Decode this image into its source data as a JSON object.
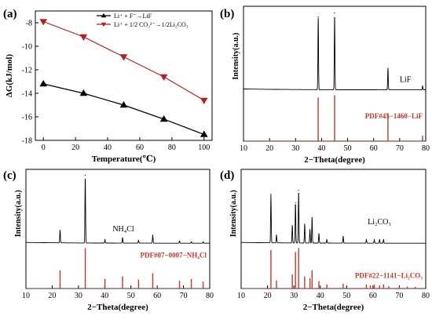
{
  "chart_data": [
    {
      "id": "a",
      "panel_label": "(a)",
      "type": "line",
      "xlabel": "Temperature(℃)",
      "ylabel": "ΔG(kJ/mol)",
      "xlim": [
        -5,
        105
      ],
      "ylim": [
        -18,
        -7
      ],
      "xticks": [
        0,
        20,
        40,
        60,
        80,
        100
      ],
      "yticks": [
        -8,
        -10,
        -12,
        -14,
        -16,
        -18
      ],
      "legend_position": "top-center",
      "series": [
        {
          "name": "Li⁺ + F⁻→LiF",
          "color": "#000000",
          "marker": "triangle-up",
          "x": [
            0,
            25,
            50,
            75,
            100
          ],
          "y": [
            -13.2,
            -14.0,
            -15.0,
            -16.2,
            -17.5
          ]
        },
        {
          "name": "Li⁺ + 1/2 CO₃²⁻→1/2Li₂CO₃",
          "color": "#b22222",
          "marker": "triangle-down",
          "x": [
            0,
            25,
            50,
            75,
            100
          ],
          "y": [
            -7.9,
            -9.2,
            -10.9,
            -12.6,
            -14.6
          ]
        }
      ]
    },
    {
      "id": "b",
      "panel_label": "(b)",
      "type": "xrd",
      "xlabel": "2−Theta(degree)",
      "ylabel": "Intensity(a.u.)",
      "xlim": [
        10,
        80
      ],
      "xticks": [
        10,
        20,
        30,
        40,
        50,
        60,
        70,
        80
      ],
      "sample_label": "LiF",
      "reference_label": "PDF#45−1460−LiF",
      "peaks": [
        [
          38.7,
          0.95
        ],
        [
          45.0,
          1.0
        ],
        [
          65.5,
          0.28
        ],
        [
          78.8,
          0.05
        ]
      ],
      "reference_lines": [
        [
          38.7,
          0.95
        ],
        [
          45.0,
          1.0
        ],
        [
          65.5,
          0.6
        ],
        [
          78.8,
          0.12
        ]
      ]
    },
    {
      "id": "c",
      "panel_label": "(c)",
      "type": "xrd",
      "xlabel": "2−Theta(degree)",
      "ylabel": "Intensity(a.u.)",
      "xlim": [
        10,
        80
      ],
      "xticks": [
        10,
        20,
        30,
        40,
        50,
        60,
        70,
        80
      ],
      "sample_label": "NH₄Cl",
      "reference_label": "PDF#07−0007−NH₄Cl",
      "peaks": [
        [
          23.0,
          0.19
        ],
        [
          32.6,
          1.0
        ],
        [
          40.1,
          0.05
        ],
        [
          46.8,
          0.08
        ],
        [
          52.9,
          0.04
        ],
        [
          58.3,
          0.12
        ],
        [
          68.5,
          0.03
        ],
        [
          73.0,
          0.02
        ],
        [
          77.5,
          0.02
        ]
      ],
      "reference_lines": [
        [
          23.0,
          0.45
        ],
        [
          32.6,
          1.0
        ],
        [
          40.1,
          0.24
        ],
        [
          46.8,
          0.3
        ],
        [
          52.9,
          0.22
        ],
        [
          58.3,
          0.38
        ],
        [
          68.5,
          0.19
        ],
        [
          73.0,
          0.24
        ],
        [
          77.5,
          0.17
        ]
      ]
    },
    {
      "id": "d",
      "panel_label": "(d)",
      "type": "xrd",
      "xlabel": "2−Theta(degree)",
      "ylabel": "Intensity(a.u.)",
      "xlim": [
        10,
        80
      ],
      "xticks": [
        10,
        20,
        30,
        40,
        50,
        60,
        70,
        80
      ],
      "sample_label": "Li₂CO₃",
      "reference_label": "PDF#22−1141−Li₂CO₃",
      "peaks": [
        [
          21.3,
          0.72
        ],
        [
          23.4,
          0.12
        ],
        [
          29.4,
          0.26
        ],
        [
          30.6,
          0.6
        ],
        [
          31.8,
          0.78
        ],
        [
          34.1,
          0.28
        ],
        [
          36.1,
          0.2
        ],
        [
          36.9,
          0.38
        ],
        [
          39.5,
          0.14
        ],
        [
          42.5,
          0.05
        ],
        [
          48.7,
          0.1
        ],
        [
          57.5,
          0.05
        ],
        [
          60.5,
          0.05
        ],
        [
          62.5,
          0.05
        ],
        [
          64.0,
          0.05
        ]
      ],
      "reference_lines": [
        [
          21.3,
          0.95
        ],
        [
          23.4,
          0.2
        ],
        [
          29.4,
          0.35
        ],
        [
          30.6,
          0.9
        ],
        [
          31.8,
          1.0
        ],
        [
          34.1,
          0.3
        ],
        [
          36.1,
          0.25
        ],
        [
          36.9,
          0.45
        ],
        [
          39.5,
          0.18
        ],
        [
          42.5,
          0.1
        ],
        [
          48.7,
          0.12
        ],
        [
          57.5,
          0.1
        ],
        [
          59.0,
          0.08
        ],
        [
          60.5,
          0.1
        ],
        [
          62.5,
          0.08
        ],
        [
          64.0,
          0.1
        ],
        [
          66.0,
          0.06
        ],
        [
          70.0,
          0.05
        ],
        [
          73.0,
          0.05
        ],
        [
          76.0,
          0.04
        ]
      ]
    }
  ]
}
